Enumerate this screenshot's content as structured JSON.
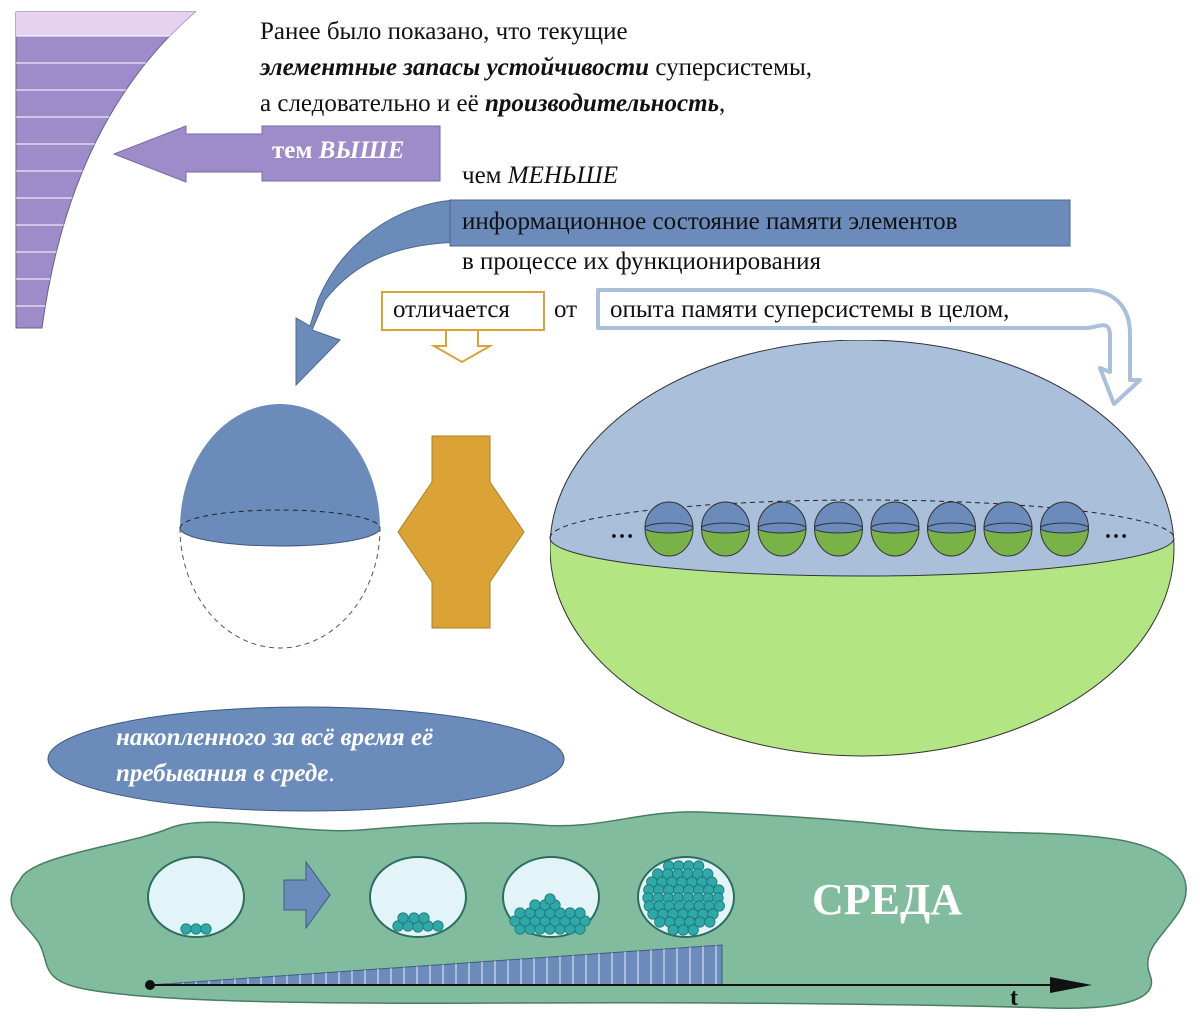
{
  "intro": {
    "line1": "Ранее было показано, что текущие",
    "line2_em": "элементные запасы устойчивости",
    "line2_rest": " суперсистемы,",
    "line3_pre": "а следовательно и её ",
    "line3_em": "производительность",
    "line3_post": ","
  },
  "higher_arrow": {
    "word": "тем",
    "emphasis": "ВЫШЕ"
  },
  "less_line": {
    "word": "чем",
    "emphasis": "МЕНЬШЕ"
  },
  "info_box": "информационное состояние памяти элементов",
  "process_line": "в процессе их функционирования",
  "differs_box": "отличается",
  "from_word": "от",
  "supersystem_box": "опыта памяти суперсистемы в целом,",
  "ellipsis_left": "…",
  "ellipsis_right": "…",
  "accumulated_ellipse": {
    "line1": "накопленного за всё время её",
    "line2": "пребывания в среде",
    "line2_end": "."
  },
  "environment_label": "СРЕДА",
  "time_axis_label": "t",
  "colors": {
    "lavender": "#9e8bc9",
    "lavender_light": "#e6d2ee",
    "steel_blue": "#6b8cba",
    "light_blue": "#a9bfda",
    "green": "#b3e582",
    "dark_green": "#79b247",
    "env_green": "#82bc9e",
    "gold": "#dba335",
    "teal_dot": "#2fa8a8"
  }
}
